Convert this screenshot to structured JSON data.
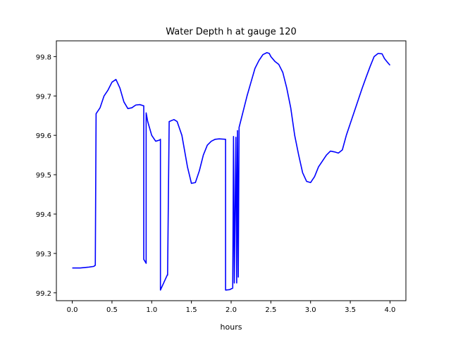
{
  "chart_data": {
    "type": "line",
    "title": "Water Depth h at gauge 120",
    "xlabel": "hours",
    "ylabel": "",
    "xlim": [
      -0.2,
      4.2
    ],
    "ylim": [
      99.18,
      99.84
    ],
    "xticks": [
      0.0,
      0.5,
      1.0,
      1.5,
      2.0,
      2.5,
      3.0,
      3.5,
      4.0
    ],
    "xtick_labels": [
      "0.0",
      "0.5",
      "1.0",
      "1.5",
      "2.0",
      "2.5",
      "3.0",
      "3.5",
      "4.0"
    ],
    "yticks": [
      99.2,
      99.3,
      99.4,
      99.5,
      99.6,
      99.7,
      99.8
    ],
    "ytick_labels": [
      "99.2",
      "99.3",
      "99.4",
      "99.5",
      "99.6",
      "99.7",
      "99.8"
    ],
    "grid": false,
    "series": [
      {
        "color": "#0000ff",
        "x": [
          0.0,
          0.1,
          0.2,
          0.27,
          0.29,
          0.3,
          0.35,
          0.4,
          0.45,
          0.5,
          0.55,
          0.6,
          0.65,
          0.7,
          0.75,
          0.8,
          0.85,
          0.9,
          0.9,
          0.93,
          0.93,
          0.95,
          1.0,
          1.05,
          1.1,
          1.11,
          1.11,
          1.2,
          1.2,
          1.22,
          1.28,
          1.32,
          1.38,
          1.45,
          1.5,
          1.55,
          1.6,
          1.65,
          1.7,
          1.75,
          1.8,
          1.85,
          1.93,
          1.93,
          1.98,
          2.02,
          2.03,
          2.04,
          2.06,
          2.07,
          2.08,
          2.09,
          2.1,
          2.15,
          2.2,
          2.25,
          2.3,
          2.35,
          2.4,
          2.45,
          2.48,
          2.5,
          2.55,
          2.6,
          2.65,
          2.7,
          2.75,
          2.8,
          2.85,
          2.9,
          2.95,
          3.0,
          3.05,
          3.1,
          3.15,
          3.2,
          3.25,
          3.3,
          3.35,
          3.4,
          3.45,
          3.5,
          3.55,
          3.6,
          3.65,
          3.7,
          3.75,
          3.8,
          3.85,
          3.9,
          3.93,
          3.97,
          4.0
        ],
        "y": [
          99.263,
          99.263,
          99.265,
          99.267,
          99.27,
          99.655,
          99.67,
          99.7,
          99.715,
          99.735,
          99.742,
          99.72,
          99.685,
          99.668,
          99.67,
          99.677,
          99.678,
          99.675,
          99.285,
          99.275,
          99.657,
          99.635,
          99.6,
          99.585,
          99.588,
          99.59,
          99.207,
          99.247,
          99.245,
          99.635,
          99.64,
          99.635,
          99.6,
          99.52,
          99.478,
          99.48,
          99.51,
          99.55,
          99.575,
          99.585,
          99.59,
          99.591,
          99.59,
          99.207,
          99.208,
          99.212,
          99.597,
          99.225,
          99.595,
          99.225,
          99.612,
          99.24,
          99.62,
          99.66,
          99.7,
          99.735,
          99.77,
          99.79,
          99.805,
          99.81,
          99.808,
          99.8,
          99.788,
          99.78,
          99.76,
          99.72,
          99.67,
          99.6,
          99.55,
          99.505,
          99.483,
          99.48,
          99.495,
          99.52,
          99.535,
          99.55,
          99.56,
          99.558,
          99.555,
          99.563,
          99.6,
          99.63,
          99.66,
          99.69,
          99.72,
          99.748,
          99.775,
          99.8,
          99.808,
          99.807,
          99.795,
          99.785,
          99.778
        ]
      }
    ]
  }
}
